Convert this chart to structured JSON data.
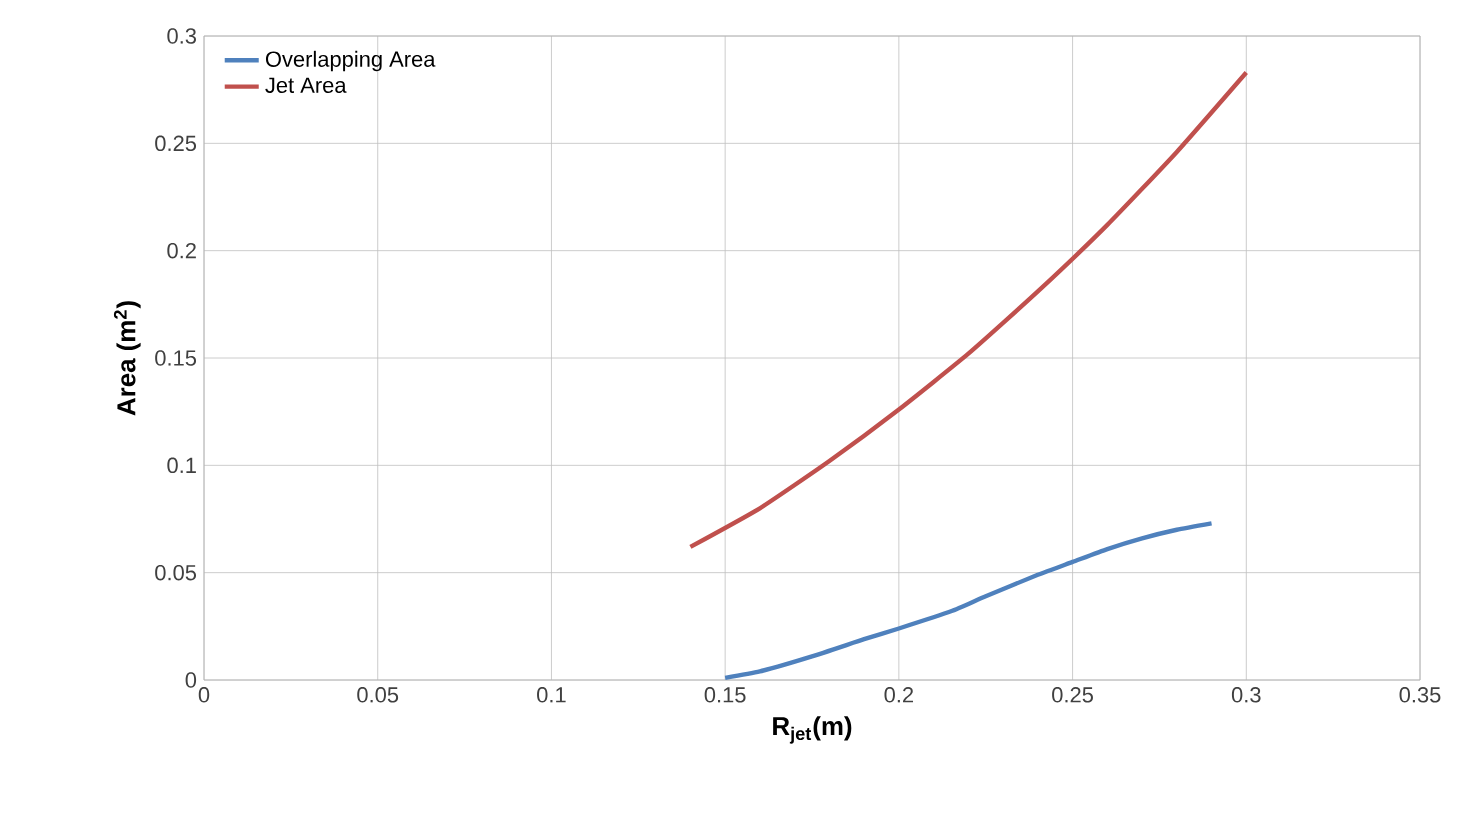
{
  "chart_data": {
    "type": "line",
    "xlabel": "**R$_{jet}$(m)**",
    "ylabel": "**Area (m$^{2}$)**",
    "xlim": [
      0,
      0.35
    ],
    "ylim": [
      0,
      0.3
    ],
    "xticks": [
      0,
      0.05,
      0.1,
      0.15,
      0.2,
      0.25,
      0.3,
      0.35
    ],
    "yticks": [
      0,
      0.05,
      0.1,
      0.15,
      0.2,
      0.25,
      0.3
    ],
    "grid": true,
    "legend": "top left",
    "marker": "none",
    "line_style": "solid",
    "series": [
      {
        "name": "Overlapping Area",
        "color": "#4f81bd",
        "x": [
          0.15,
          0.16,
          0.175,
          0.19,
          0.2,
          0.215,
          0.225,
          0.24,
          0.25,
          0.26,
          0.27,
          0.28,
          0.29
        ],
        "values": [
          0.001,
          0.004,
          0.011,
          0.019,
          0.024,
          0.032,
          0.039,
          0.049,
          0.055,
          0.061,
          0.066,
          0.07,
          0.073
        ]
      },
      {
        "name": "Jet Area",
        "color": "#c0504d",
        "x": [
          0.14,
          0.16,
          0.18,
          0.2,
          0.22,
          0.24,
          0.26,
          0.28,
          0.3
        ],
        "values": [
          0.062,
          0.08,
          0.102,
          0.126,
          0.152,
          0.181,
          0.212,
          0.246,
          0.283
        ]
      }
    ]
  }
}
